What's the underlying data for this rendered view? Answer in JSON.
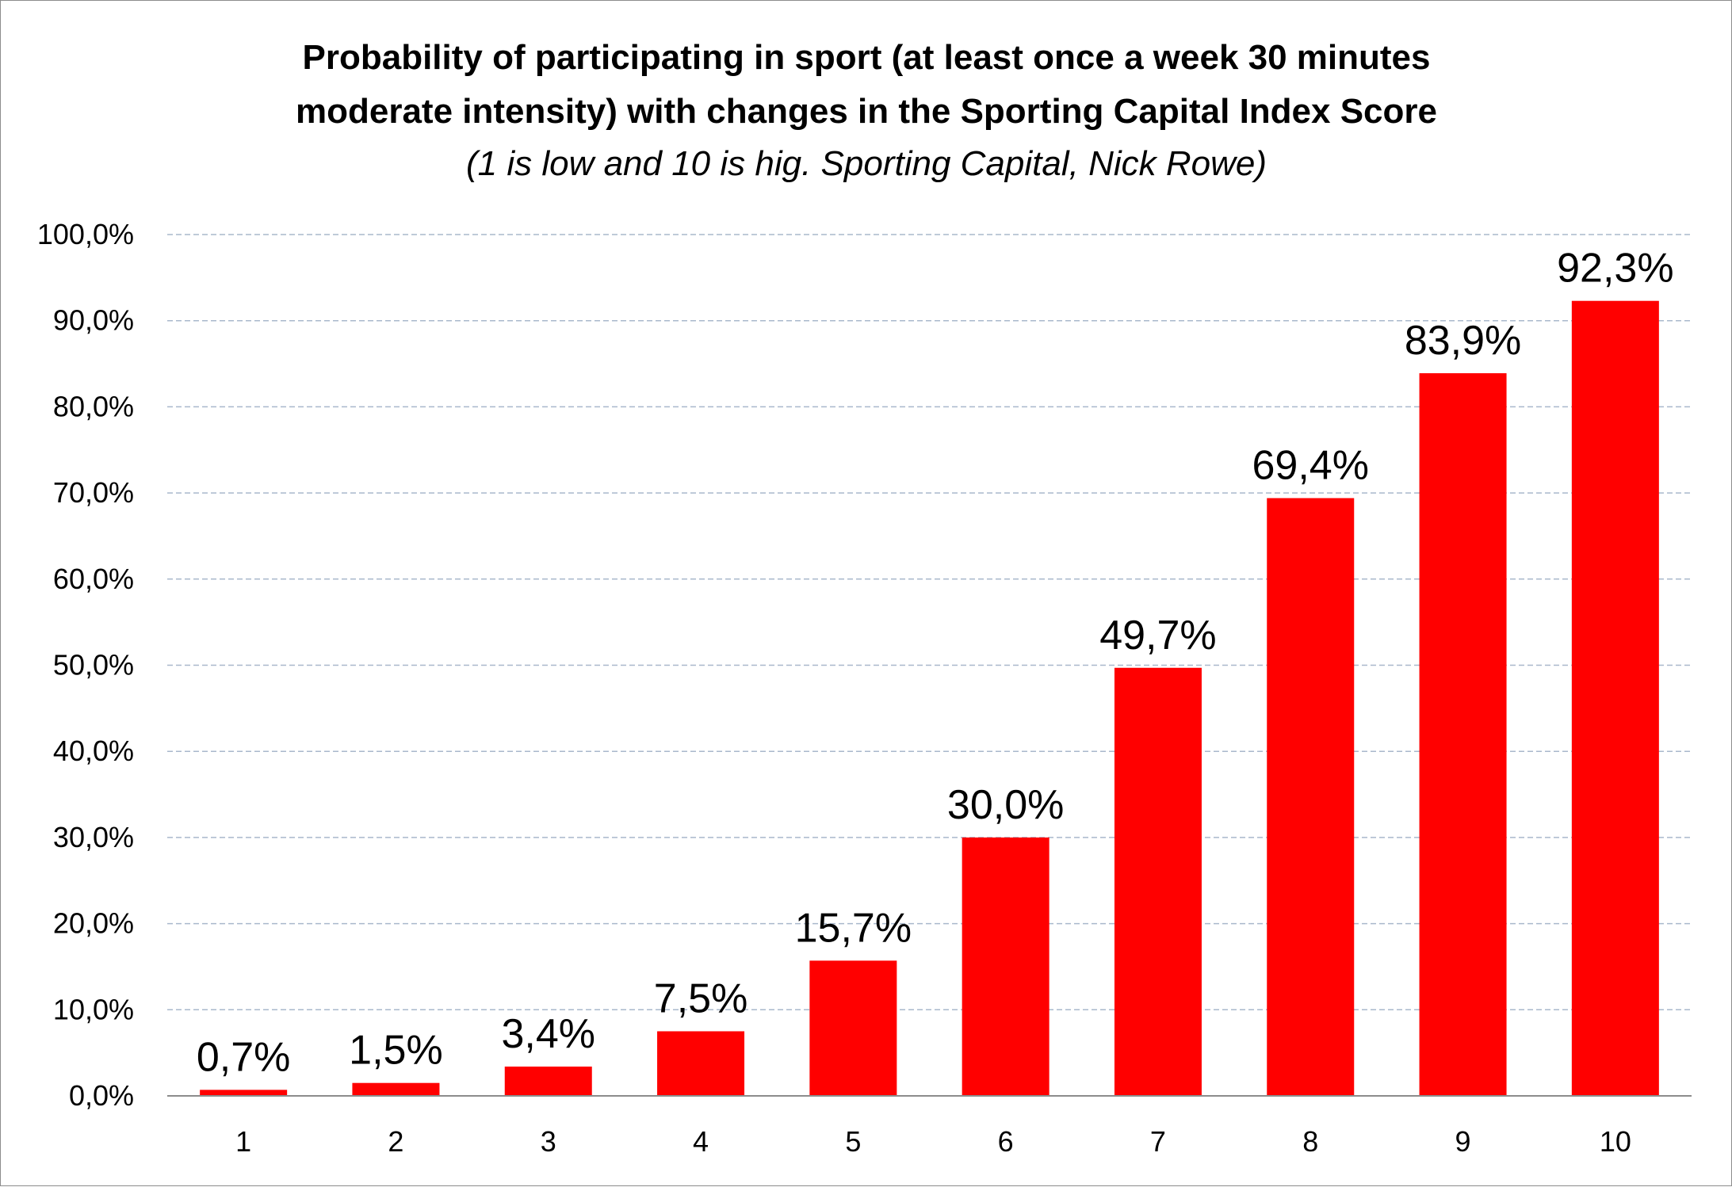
{
  "chart_data": {
    "type": "bar",
    "title_line1": "Probability of participating in sport (at least once a week 30 minutes",
    "title_line2": "moderate intensity) with changes in the Sporting Capital Index Score",
    "subtitle": "(1 is low and 10 is hig. Sporting Capital, Nick Rowe)",
    "categories": [
      "1",
      "2",
      "3",
      "4",
      "5",
      "6",
      "7",
      "8",
      "9",
      "10"
    ],
    "values": [
      0.7,
      1.5,
      3.4,
      7.5,
      15.7,
      30.0,
      49.7,
      69.4,
      83.9,
      92.3
    ],
    "data_labels": [
      "0,7%",
      "1,5%",
      "3,4%",
      "7,5%",
      "15,7%",
      "30,0%",
      "49,7%",
      "69,4%",
      "83,9%",
      "92,3%"
    ],
    "yticks": [
      0,
      10,
      20,
      30,
      40,
      50,
      60,
      70,
      80,
      90,
      100
    ],
    "ytick_labels": [
      "0,0%",
      "10,0%",
      "20,0%",
      "30,0%",
      "40,0%",
      "50,0%",
      "60,0%",
      "70,0%",
      "80,0%",
      "90,0%",
      "100,0%"
    ],
    "ylim": [
      0,
      100
    ],
    "xlabel": "",
    "ylabel": "",
    "grid": true,
    "legend": "none",
    "bar_color": "#ff0000",
    "grid_color": "#a9b8cc"
  }
}
